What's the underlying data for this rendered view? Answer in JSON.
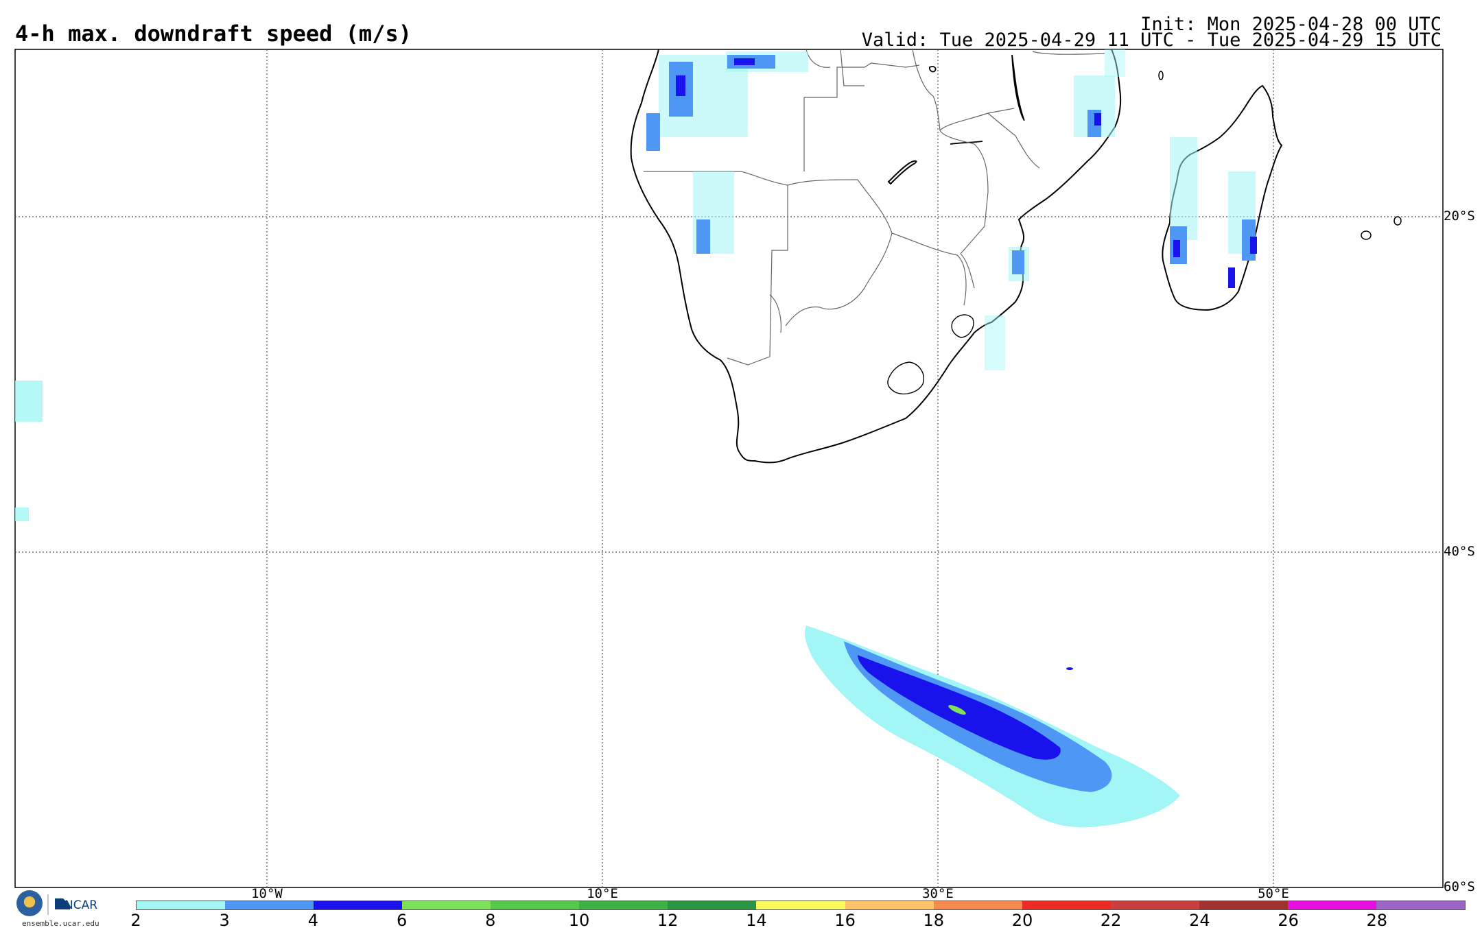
{
  "header": {
    "title": "4-h max. downdraft speed (m/s)",
    "init": "Init: Mon 2025-04-28 00 UTC",
    "valid": "Valid: Tue 2025-04-29 11 UTC - Tue 2025-04-29 15 UTC"
  },
  "map": {
    "latitude_labels": [
      "20°S",
      "40°S",
      "60°S"
    ],
    "longitude_labels": [
      "10°W",
      "10°E",
      "30°E",
      "50°E"
    ],
    "region": "Southern Africa, Madagascar and South Atlantic / Southern Ocean",
    "colors": {
      "land_outline": "#000000",
      "border": "#666666",
      "gridline": "#555555"
    }
  },
  "colorbar": {
    "ticks": [
      "2",
      "3",
      "4",
      "6",
      "8",
      "10",
      "12",
      "14",
      "16",
      "18",
      "20",
      "22",
      "24",
      "26",
      "28"
    ],
    "colors": [
      "#a3f6f6",
      "#4f97f5",
      "#1a12ec",
      "#7fe05a",
      "#56c94c",
      "#3cb143",
      "#2a9542",
      "#fcfd5d",
      "#fdc46a",
      "#f78a4f",
      "#ee2a24",
      "#c9403f",
      "#a23232",
      "#e90fe0",
      "#9a64c4"
    ]
  },
  "logos": {
    "nsf": "NSF",
    "ncar": "NCAR",
    "url": "ensemble.ucar.edu"
  }
}
